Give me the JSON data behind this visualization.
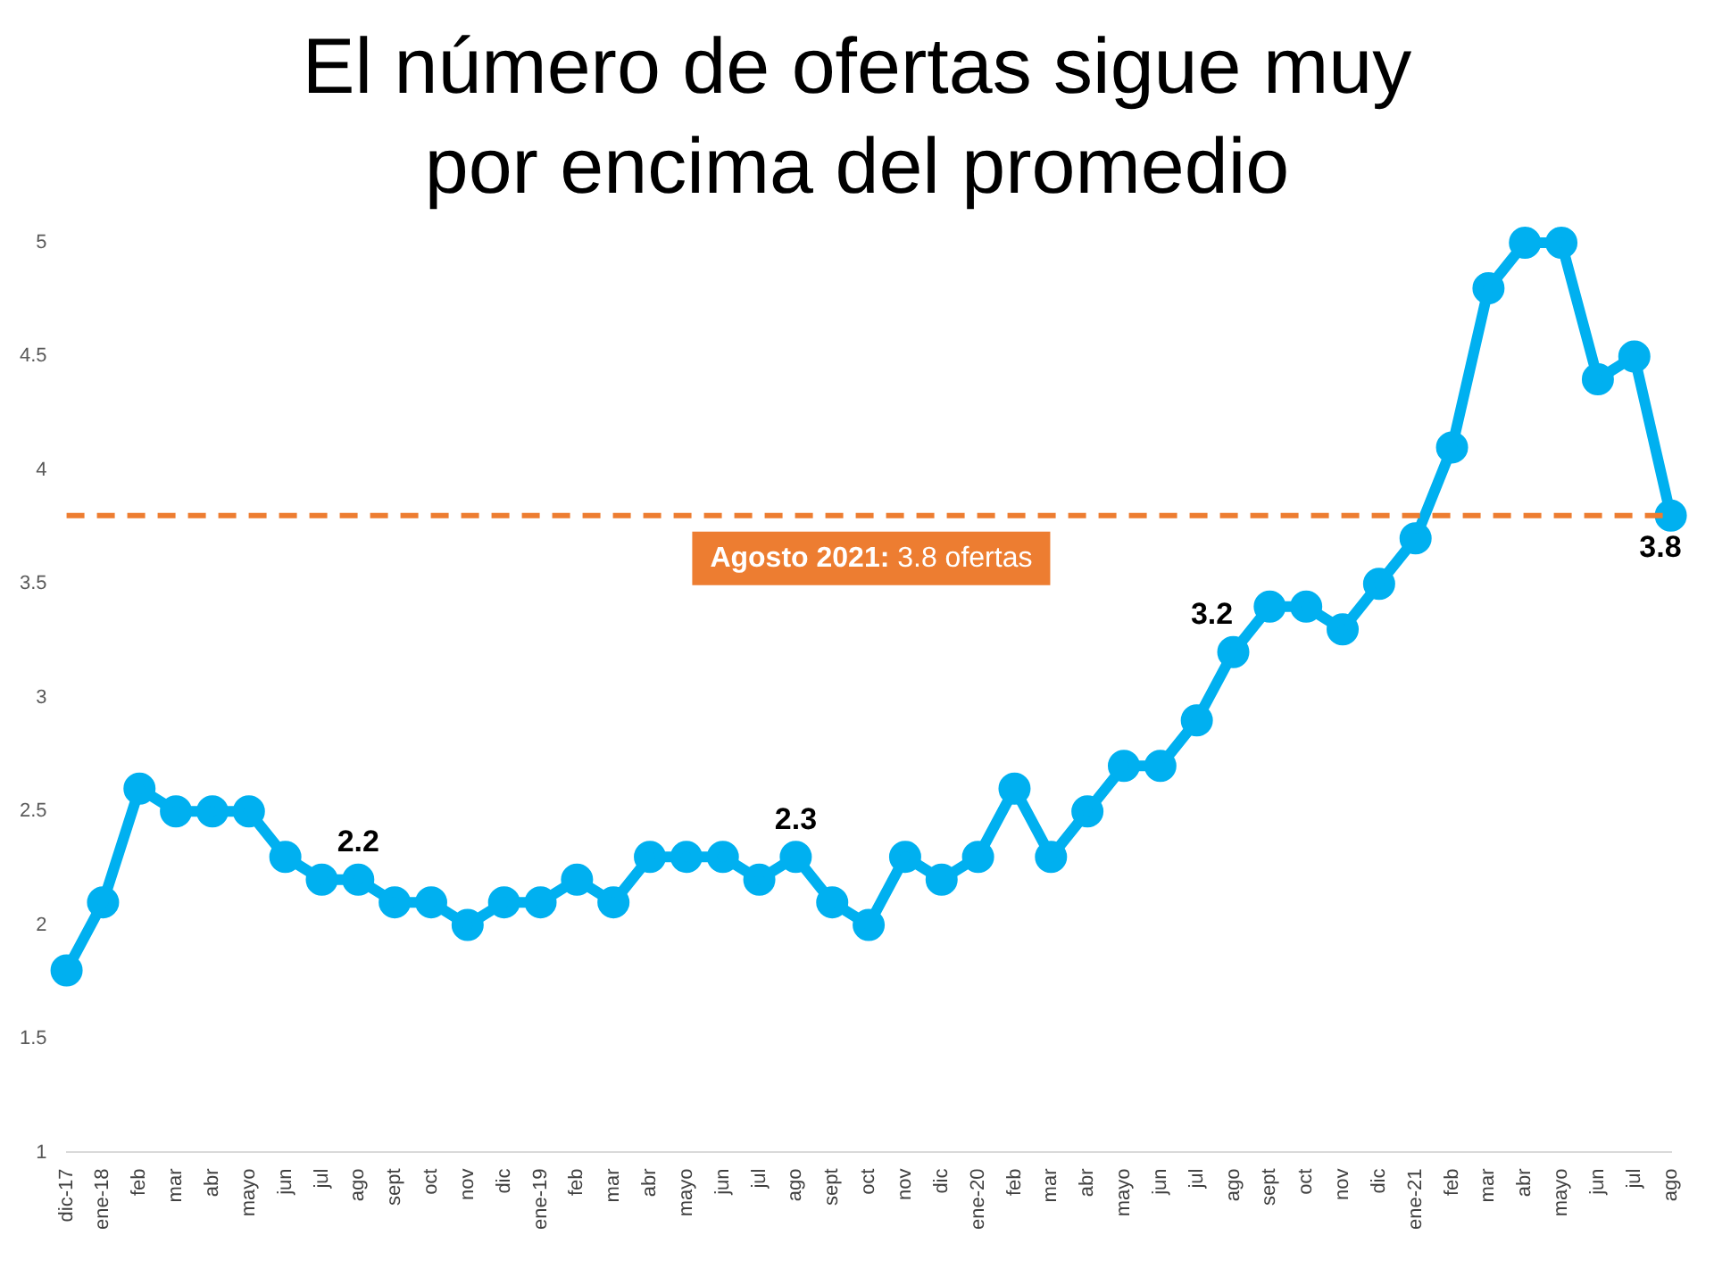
{
  "chart_data": {
    "type": "line",
    "title": "El número de ofertas sigue muy por encima del promedio",
    "categories": [
      "dic-17",
      "ene-18",
      "feb",
      "mar",
      "abr",
      "mayo",
      "jun",
      "jul",
      "ago",
      "sept",
      "oct",
      "nov",
      "dic",
      "ene-19",
      "feb",
      "mar",
      "abr",
      "mayo",
      "jun",
      "jul",
      "ago",
      "sept",
      "oct",
      "nov",
      "dic",
      "ene-20",
      "feb",
      "mar",
      "abr",
      "mayo",
      "jun",
      "jul",
      "ago",
      "sept",
      "oct",
      "nov",
      "dic",
      "ene-21",
      "feb",
      "mar",
      "abr",
      "mayo",
      "jun",
      "jul",
      "ago"
    ],
    "series": [
      {
        "color": "#00b0f0",
        "values": [
          1.8,
          2.1,
          2.6,
          2.5,
          2.5,
          2.5,
          2.3,
          2.2,
          2.2,
          2.1,
          2.1,
          2.0,
          2.1,
          2.1,
          2.2,
          2.1,
          2.3,
          2.3,
          2.3,
          2.2,
          2.3,
          2.1,
          2.0,
          2.3,
          2.2,
          2.3,
          2.6,
          2.3,
          2.5,
          2.7,
          2.7,
          2.9,
          3.2,
          3.4,
          3.4,
          3.3,
          3.5,
          3.7,
          4.1,
          4.8,
          5.0,
          5.0,
          4.4,
          4.5,
          3.8
        ],
        "value_labels": [
          null,
          null,
          null,
          null,
          null,
          null,
          null,
          null,
          "2.2",
          null,
          null,
          null,
          null,
          null,
          null,
          null,
          null,
          null,
          null,
          null,
          "2.3",
          null,
          null,
          null,
          null,
          null,
          null,
          null,
          null,
          null,
          null,
          null,
          "3.2",
          null,
          null,
          null,
          null,
          null,
          null,
          null,
          null,
          null,
          null,
          null,
          "3.8"
        ]
      }
    ],
    "ylim": [
      1,
      5
    ],
    "yticks": [
      1,
      1.5,
      2,
      2.5,
      3,
      3.5,
      4,
      4.5,
      5
    ],
    "grid": false,
    "legend": false,
    "marker": "circle",
    "line_style": "solid",
    "ref_lines": [
      {
        "axis": "y",
        "value": 3.8,
        "label": "Agosto 2021: 3.8 ofertas",
        "color": "#ed7d31",
        "line_style": "dashed"
      }
    ]
  }
}
